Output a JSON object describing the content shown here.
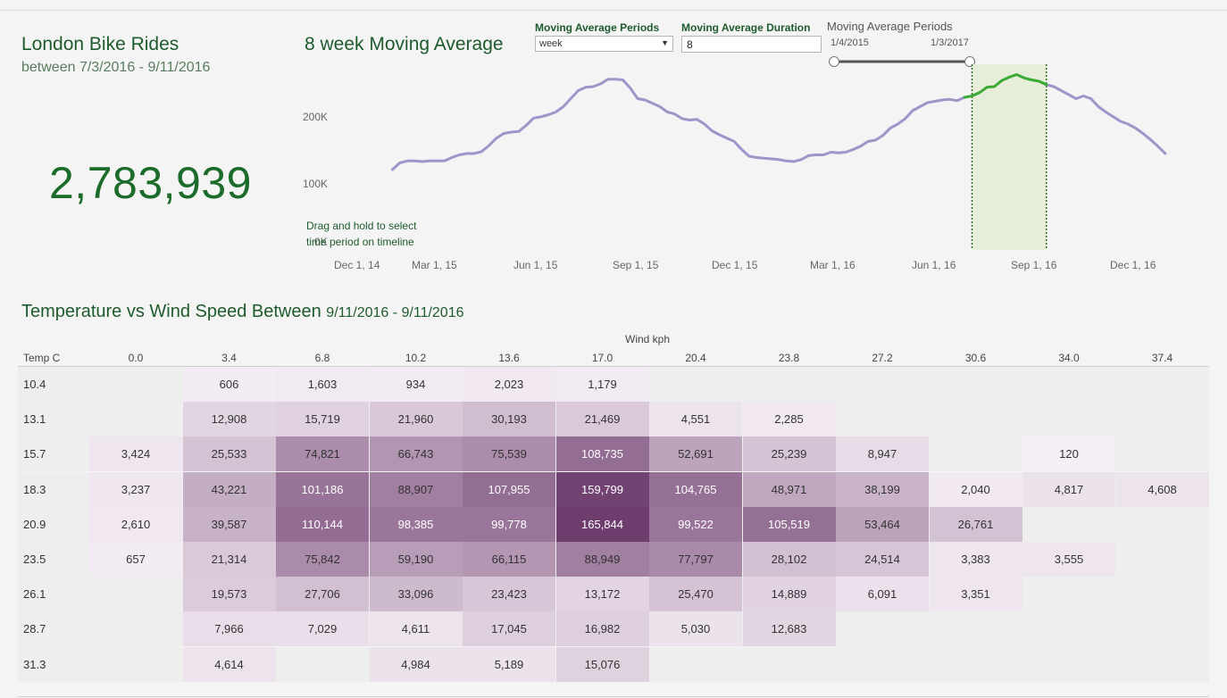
{
  "header": {
    "title": "London Bike Rides",
    "subtitle": "between 7/3/2016 - 9/11/2016",
    "total_rides": "2,783,939",
    "chart_title": "8 week Moving Average"
  },
  "controls": {
    "period_label": "Moving Average Periods",
    "period_value": "week",
    "duration_label": "Moving Average Duration",
    "duration_value": "8",
    "range_label": "Moving Average Periods",
    "range_start": "1/4/2015",
    "range_end": "1/3/2017"
  },
  "hint": {
    "line1": "Drag and hold to select",
    "line2": "time period on timeline"
  },
  "colors": {
    "title_green": "#1e5b2c",
    "line_purple": "#a094c9",
    "line_green": "#3aaa35",
    "highlight": "#e6edd8",
    "heat_max": "#6e3d6e"
  },
  "chart_data": {
    "type": "line",
    "title": "8 week Moving Average",
    "y_ticks": [
      "200K",
      "100K",
      "0K"
    ],
    "x_ticks": [
      "Dec 1, 14",
      "Mar 1, 15",
      "Jun 1, 15",
      "Sep 1, 15",
      "Dec 1, 15",
      "Mar 1, 16",
      "Jun 1, 16",
      "Sep 1, 16",
      "Dec 1, 16"
    ],
    "ylim": [
      0,
      290000
    ],
    "selection": {
      "start": "7/3/2016",
      "end": "9/11/2016"
    },
    "series": [
      {
        "dates": [
          "2015-01-04",
          "2015-01-11",
          "2015-01-18",
          "2015-01-25",
          "2015-02-01",
          "2015-02-08",
          "2015-02-15",
          "2015-02-22",
          "2015-03-01",
          "2015-03-08",
          "2015-03-15",
          "2015-03-22",
          "2015-03-29",
          "2015-04-05",
          "2015-04-12",
          "2015-04-19",
          "2015-04-26",
          "2015-05-03",
          "2015-05-10",
          "2015-05-17",
          "2015-05-24",
          "2015-05-31",
          "2015-06-07",
          "2015-06-14",
          "2015-06-21",
          "2015-06-28",
          "2015-07-05",
          "2015-07-12",
          "2015-07-19",
          "2015-07-26",
          "2015-08-02",
          "2015-08-09",
          "2015-08-16",
          "2015-08-23",
          "2015-08-30",
          "2015-09-06",
          "2015-09-13",
          "2015-09-20",
          "2015-09-27",
          "2015-10-04",
          "2015-10-11",
          "2015-10-18",
          "2015-10-25",
          "2015-11-01",
          "2015-11-08",
          "2015-11-15",
          "2015-11-22",
          "2015-11-29",
          "2015-12-06",
          "2015-12-13",
          "2015-12-20",
          "2015-12-27",
          "2016-01-03",
          "2016-01-10",
          "2016-01-17",
          "2016-01-24",
          "2016-01-31",
          "2016-02-07",
          "2016-02-14",
          "2016-02-21",
          "2016-02-28",
          "2016-03-06",
          "2016-03-13",
          "2016-03-20",
          "2016-03-27",
          "2016-04-03",
          "2016-04-10",
          "2016-04-17",
          "2016-04-24",
          "2016-05-01",
          "2016-05-08",
          "2016-05-15",
          "2016-05-22",
          "2016-05-29",
          "2016-06-05",
          "2016-06-12",
          "2016-06-19",
          "2016-06-26",
          "2016-07-03",
          "2016-07-10",
          "2016-07-17",
          "2016-07-24",
          "2016-07-31",
          "2016-08-07",
          "2016-08-14",
          "2016-08-21",
          "2016-08-28",
          "2016-09-04",
          "2016-09-11",
          "2016-09-18",
          "2016-09-25",
          "2016-10-02",
          "2016-10-09",
          "2016-10-16",
          "2016-10-23",
          "2016-10-30",
          "2016-11-06",
          "2016-11-13",
          "2016-11-20",
          "2016-11-27",
          "2016-12-04",
          "2016-12-11",
          "2016-12-18",
          "2016-12-25",
          "2017-01-01"
        ],
        "values": [
          120000,
          130000,
          133000,
          133000,
          132000,
          133000,
          133000,
          133000,
          138000,
          142000,
          144000,
          144000,
          147000,
          156000,
          167000,
          174000,
          176000,
          177000,
          186000,
          197000,
          199000,
          202000,
          206000,
          214000,
          226000,
          238000,
          243000,
          244000,
          248000,
          255000,
          255000,
          254000,
          242000,
          226000,
          224000,
          219000,
          214000,
          206000,
          203000,
          196000,
          194000,
          195000,
          188000,
          178000,
          172000,
          167000,
          162000,
          150000,
          140000,
          138000,
          137000,
          136000,
          135000,
          133000,
          132000,
          135000,
          141000,
          142000,
          142000,
          146000,
          145000,
          146000,
          150000,
          155000,
          162000,
          164000,
          171000,
          182000,
          188000,
          196000,
          208000,
          214000,
          220000,
          222000,
          224000,
          225000,
          223000,
          228000,
          230000,
          235000,
          243000,
          244000,
          253000,
          258000,
          262000,
          257000,
          254000,
          252000,
          247000,
          244000,
          238000,
          232000,
          226000,
          230000,
          226000,
          214000,
          206000,
          199000,
          192000,
          188000,
          182000,
          174000,
          165000,
          155000,
          144000
        ]
      }
    ]
  },
  "heatmap": {
    "title": "Temperature vs Wind Speed Between",
    "title_range": "9/11/2016 - 9/11/2016",
    "x_label": "Wind kph",
    "y_label": "Temp C",
    "columns": [
      "0.0",
      "3.4",
      "6.8",
      "10.2",
      "13.6",
      "17.0",
      "20.4",
      "23.8",
      "27.2",
      "30.6",
      "34.0",
      "37.4"
    ],
    "rows": [
      {
        "temp": "10.4",
        "cells": [
          "",
          "606",
          "1,603",
          "934",
          "2,023",
          "1,179",
          "",
          "",
          "",
          "",
          "",
          ""
        ]
      },
      {
        "temp": "13.1",
        "cells": [
          "",
          "12,908",
          "15,719",
          "21,960",
          "30,193",
          "21,469",
          "4,551",
          "2,285",
          "",
          "",
          "",
          ""
        ]
      },
      {
        "temp": "15.7",
        "cells": [
          "3,424",
          "25,533",
          "74,821",
          "66,743",
          "75,539",
          "108,735",
          "52,691",
          "25,239",
          "8,947",
          "",
          "120",
          ""
        ]
      },
      {
        "temp": "18.3",
        "cells": [
          "3,237",
          "43,221",
          "101,186",
          "88,907",
          "107,955",
          "159,799",
          "104,765",
          "48,971",
          "38,199",
          "2,040",
          "4,817",
          "4,608"
        ]
      },
      {
        "temp": "20.9",
        "cells": [
          "2,610",
          "39,587",
          "110,144",
          "98,385",
          "99,778",
          "165,844",
          "99,522",
          "105,519",
          "53,464",
          "26,761",
          "",
          ""
        ]
      },
      {
        "temp": "23.5",
        "cells": [
          "657",
          "21,314",
          "75,842",
          "59,190",
          "66,115",
          "88,949",
          "77,797",
          "28,102",
          "24,514",
          "3,383",
          "3,555",
          ""
        ]
      },
      {
        "temp": "26.1",
        "cells": [
          "",
          "19,573",
          "27,706",
          "33,096",
          "23,423",
          "13,172",
          "25,470",
          "14,889",
          "6,091",
          "3,351",
          "",
          ""
        ]
      },
      {
        "temp": "28.7",
        "cells": [
          "",
          "7,966",
          "7,029",
          "4,611",
          "17,045",
          "16,982",
          "5,030",
          "12,683",
          "",
          "",
          "",
          ""
        ]
      },
      {
        "temp": "31.3",
        "cells": [
          "",
          "4,614",
          "",
          "4,984",
          "5,189",
          "15,076",
          "",
          "",
          "",
          "",
          "",
          ""
        ]
      }
    ]
  }
}
